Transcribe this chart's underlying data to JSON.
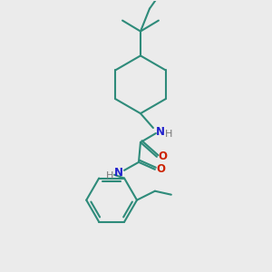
{
  "background_color": "#ebebeb",
  "bond_color": "#2e8b7a",
  "n_color": "#2222cc",
  "o_color": "#cc2200",
  "h_color": "#777777",
  "line_width": 1.5,
  "figsize": [
    3.0,
    3.0
  ],
  "dpi": 100,
  "xlim": [
    0,
    300
  ],
  "ylim": [
    0,
    300
  ]
}
